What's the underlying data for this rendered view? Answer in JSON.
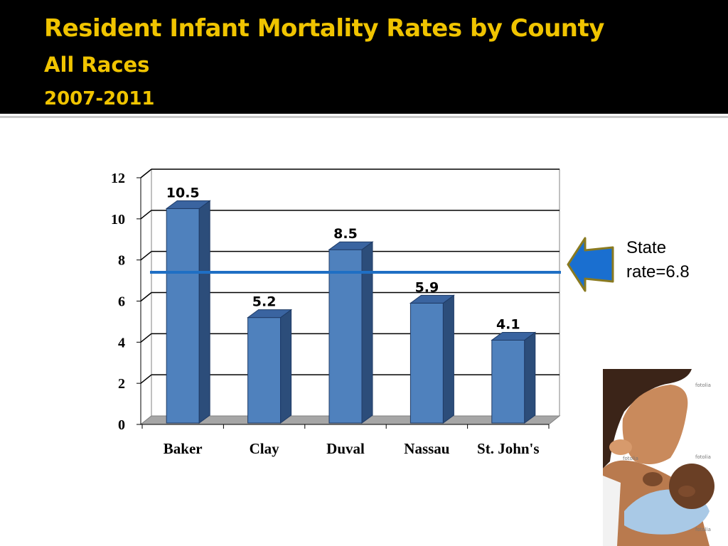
{
  "slide": {
    "title": "Resident Infant Mortality Rates by County",
    "subtitle": "All Races",
    "years": "2007-2011"
  },
  "reference_line": {
    "label": "State\nrate=6.8",
    "value": 6.8,
    "color": "#1f6fc4"
  },
  "photo": {
    "watermark": "fotolia"
  },
  "colors": {
    "bar_front": "#4f81bd",
    "bar_side": "#2c4d7a",
    "bar_top": "#3a64a0",
    "title": "#f0c400",
    "arrow_fill": "#1a6fd0",
    "arrow_border": "#8a7a20"
  },
  "chart_data": {
    "type": "bar",
    "categories": [
      "Baker",
      "Clay",
      "Duval",
      "Nassau",
      "St. John's"
    ],
    "values": [
      10.5,
      5.2,
      8.5,
      5.9,
      4.1
    ],
    "data_labels": [
      "10.5",
      "5.2",
      "8.5",
      "5.9",
      "4.1"
    ],
    "ylim": [
      0,
      12
    ],
    "yticks": [
      0,
      2,
      4,
      6,
      8,
      10,
      12
    ],
    "grid": true,
    "three_d": true,
    "legend": "none"
  }
}
